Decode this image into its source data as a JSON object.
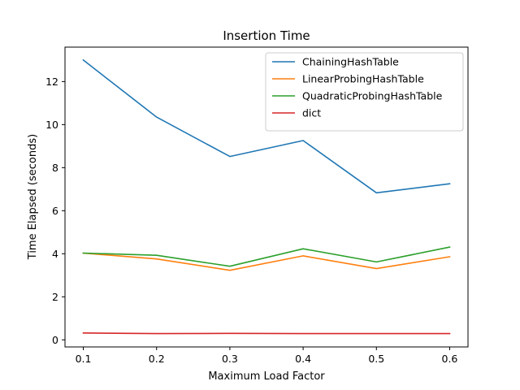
{
  "chart_data": {
    "type": "line",
    "title": "Insertion Time",
    "xlabel": "Maximum Load Factor",
    "ylabel": "Time Elapsed (seconds)",
    "x": [
      0.1,
      0.2,
      0.3,
      0.4,
      0.5,
      0.6
    ],
    "xticks": [
      "0.1",
      "0.2",
      "0.3",
      "0.4",
      "0.5",
      "0.6"
    ],
    "yticks": [
      "0",
      "2",
      "4",
      "6",
      "8",
      "10",
      "12"
    ],
    "xlim": [
      0.075,
      0.625
    ],
    "ylim": [
      -0.33,
      13.6
    ],
    "grid": false,
    "legend_position": "top-right",
    "series": [
      {
        "name": "ChainingHashTable",
        "color": "#1f77b4",
        "values": [
          13.0,
          10.35,
          8.52,
          9.26,
          6.83,
          7.25
        ]
      },
      {
        "name": "LinearProbingHashTable",
        "color": "#ff7f0e",
        "values": [
          4.03,
          3.76,
          3.23,
          3.9,
          3.31,
          3.86
        ]
      },
      {
        "name": "QuadraticProbingHashTable",
        "color": "#2ca02c",
        "values": [
          4.03,
          3.93,
          3.42,
          4.23,
          3.62,
          4.31
        ]
      },
      {
        "name": "dict",
        "color": "#d62728",
        "values": [
          0.32,
          0.29,
          0.3,
          0.29,
          0.29,
          0.29
        ]
      }
    ]
  }
}
